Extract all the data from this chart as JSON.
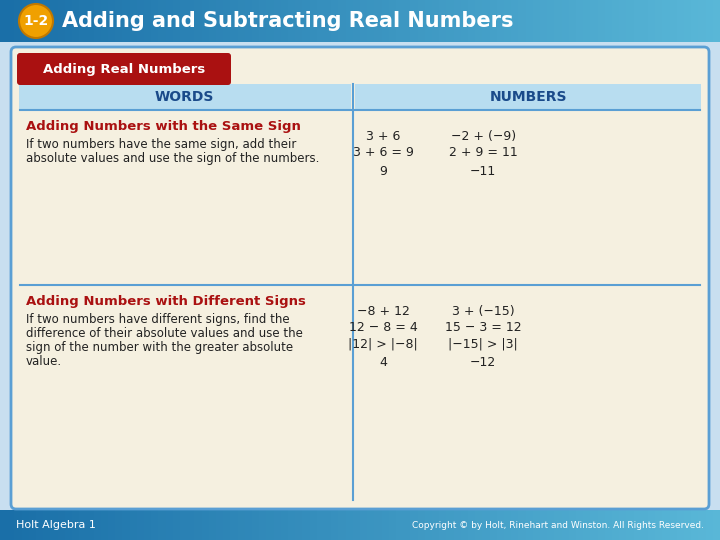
{
  "title": "Adding and Subtracting Real Numbers",
  "lesson_num": "1-2",
  "header_bg_left": "#1a6fa8",
  "header_bg_right": "#5ab8d8",
  "footer_bg_left": "#1a6fa8",
  "footer_bg_right": "#5ab8d8",
  "page_bg": "#c8dff0",
  "footer_text_left": "Holt Algebra 1",
  "footer_text_right": "Copyright © by Holt, Rinehart and Winston. All Rights Reserved.",
  "main_bg": "#f5f0e0",
  "card_border": "#5a9fd4",
  "section_header_bg": "#aa1111",
  "section_header_text": "Adding Real Numbers",
  "col_header_bg": "#b8ddf0",
  "col_header_text_color": "#1a4a8a",
  "col1_header": "WORDS",
  "col2_header": "NUMBERS",
  "divider_color": "#5a9fd4",
  "row1_title": "Adding Numbers with the Same Sign",
  "row1_title_color": "#aa1111",
  "row1_words_line1": "If two numbers have the same sign, add their",
  "row1_words_line2": "absolute values and use the sign of the numbers.",
  "row1_num_r1c1": "3 + 6",
  "row1_num_r1c2": "−2 + (−9)",
  "row1_num_r2c1": "3 + 6 = 9",
  "row1_num_r2c2": "2 + 9 = 11",
  "row1_num_r3c1": "9",
  "row1_num_r3c2": "−11",
  "row2_title": "Adding Numbers with Different Signs",
  "row2_title_color": "#aa1111",
  "row2_words_line1": "If two numbers have different signs, find the",
  "row2_words_line2": "difference of their absolute values and use the",
  "row2_words_line3": "sign of the number with the greater absolute",
  "row2_words_line4": "value.",
  "row2_num_r1c1": "−8 + 12",
  "row2_num_r1c2": "3 + (−15)",
  "row2_num_r2c1": "12 − 8 = 4",
  "row2_num_r2c2": "15 − 3 = 12",
  "row2_num_r3c1": "|12| > |−8|",
  "row2_num_r3c2": "|−15| > |3|",
  "row2_num_r4c1": "4",
  "row2_num_r4c2": "−12",
  "words_color": "#222222",
  "numbers_color": "#222222",
  "circle_color": "#f0a000",
  "circle_edge": "#c07800"
}
